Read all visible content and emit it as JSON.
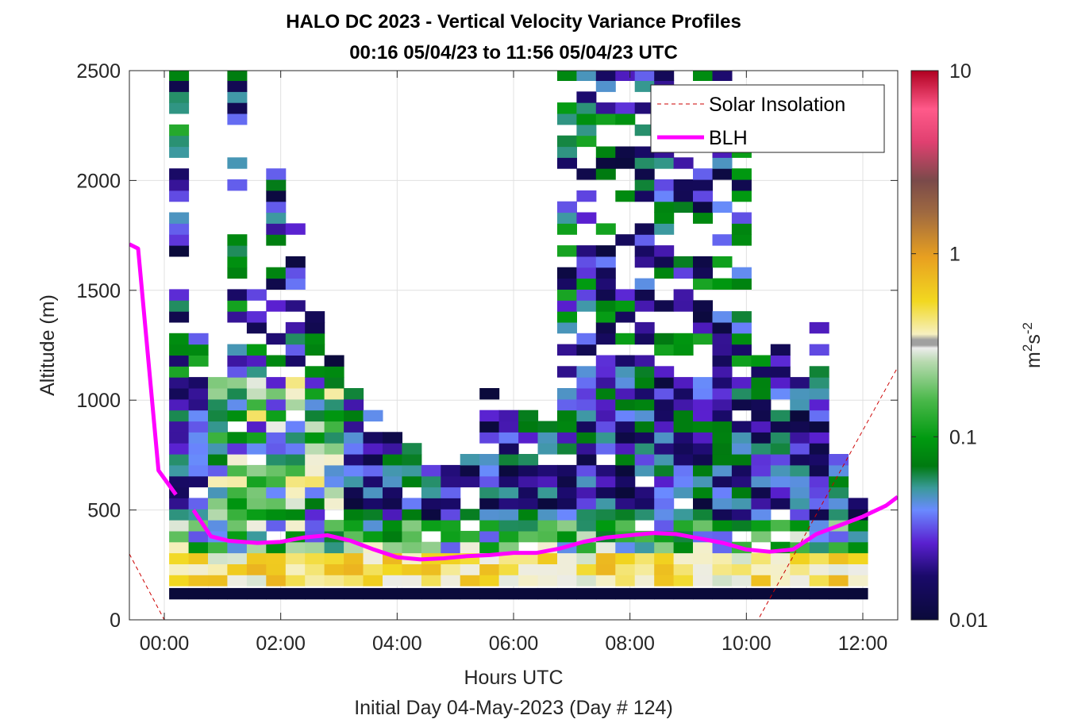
{
  "figure": {
    "title_line1": "HALO DC 2023 - Vertical Velocity Variance Profiles",
    "title_line2": "00:16 05/04/23 to 11:56 05/04/23  UTC",
    "caption": "Initial Day 04-May-2023 (Day # 124)"
  },
  "chart_data": {
    "type": "heatmap",
    "xlabel": "Hours UTC",
    "ylabel": "Altitude (m)",
    "xlim": [
      -0.6,
      12.6
    ],
    "ylim": [
      0,
      2500
    ],
    "x_ticks": [
      0,
      2,
      4,
      6,
      8,
      10,
      12
    ],
    "x_tick_labels": [
      "00:00",
      "02:00",
      "04:00",
      "06:00",
      "08:00",
      "10:00",
      "12:00"
    ],
    "y_ticks": [
      0,
      500,
      1000,
      1500,
      2000,
      2500
    ],
    "y_tick_labels": [
      "0",
      "500",
      "1000",
      "1500",
      "2000",
      "2500"
    ],
    "grid": true,
    "legend_position": "top-right",
    "colorbar": {
      "label_base": "m",
      "label_sup1": "2",
      "label_mid": "s",
      "label_sup2": "-2",
      "scale": "log",
      "range": [
        0.01,
        10
      ],
      "tick_values": [
        0.01,
        0.1,
        1,
        10
      ],
      "tick_labels": [
        "0.01",
        "0.1",
        "1",
        "10"
      ]
    },
    "series": [
      {
        "name": "Solar Insolation",
        "style": "dashed",
        "color": "#cc0000",
        "x": [
          -0.6,
          0.0,
          10.2,
          12.6
        ],
        "y": [
          300,
          0,
          0,
          1150
        ]
      },
      {
        "name": "BLH",
        "style": "solid",
        "color": "#ff00ff",
        "segments": [
          {
            "x": [
              -0.6,
              -0.45,
              -0.1,
              0.2
            ],
            "y": [
              1710,
              1690,
              680,
              570
            ]
          },
          {
            "x": [
              0.5,
              0.8,
              1.1,
              1.6,
              2.0,
              2.4,
              2.8,
              3.2,
              3.6,
              4.0,
              4.4,
              4.8,
              5.2,
              5.6,
              6.0,
              6.4,
              6.8,
              7.2,
              7.6,
              8.0,
              8.4,
              8.8,
              9.2,
              9.6,
              10.0,
              10.4,
              10.8,
              11.2,
              11.6,
              12.0,
              12.4,
              12.6
            ],
            "y": [
              500,
              380,
              360,
              350,
              355,
              375,
              385,
              360,
              320,
              285,
              275,
              280,
              290,
              295,
              305,
              305,
              325,
              355,
              375,
              385,
              395,
              390,
              370,
              350,
              320,
              310,
              320,
              390,
              430,
              470,
              520,
              560
            ]
          }
        ]
      }
    ],
    "heatmap": {
      "x_start": 0.25,
      "x_step": 0.3333,
      "x_count": 36,
      "altitude_bins_m": [
        120,
        180,
        230,
        280,
        330,
        380,
        430,
        480,
        530,
        580,
        630,
        680,
        730,
        780,
        830,
        880,
        930,
        980,
        1030,
        1080,
        1130,
        1180,
        1230,
        1280,
        1330,
        1380,
        1430,
        1480,
        1530,
        1580,
        1630,
        1680,
        1730,
        1780,
        1830,
        1880,
        1930,
        1980,
        2030,
        2080,
        2130,
        2180,
        2230,
        2280,
        2330,
        2380,
        2430,
        2480
      ],
      "value_range": [
        0.01,
        10
      ],
      "note_values": "log10 variance per column; empty bins not drawn"
    }
  }
}
